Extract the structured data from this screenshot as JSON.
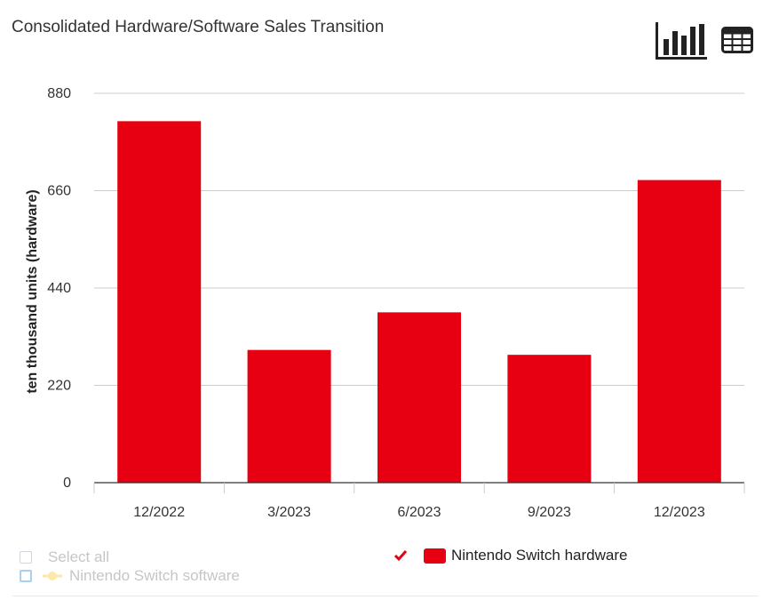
{
  "title": "Consolidated Hardware/Software Sales Transition",
  "toolbar": {
    "chart_view_icon": "bar-chart-icon",
    "table_view_icon": "table-icon"
  },
  "colors": {
    "bar": "#e60012",
    "grid": "#cccccc",
    "axis": "#333333",
    "text": "#333333",
    "muted": "#c6c6c6",
    "software": "#fde8a7"
  },
  "chart_data": {
    "type": "bar",
    "title": "Consolidated Hardware/Software Sales Transition",
    "categories": [
      "12/2022",
      "3/2023",
      "6/2023",
      "9/2023",
      "12/2023"
    ],
    "series": [
      {
        "name": "Nintendo Switch hardware",
        "values": [
          817,
          300,
          385,
          289,
          684
        ]
      }
    ],
    "xlabel": "",
    "ylabel": "ten thousand units (hardware)",
    "ylim": [
      0,
      880
    ],
    "yticks": [
      "0",
      "220",
      "440",
      "660",
      "880"
    ],
    "grid": true
  },
  "legend": {
    "select_all": "Select all",
    "software": "Nintendo Switch software",
    "hardware": "Nintendo Switch hardware",
    "check_icon": "check-icon"
  }
}
